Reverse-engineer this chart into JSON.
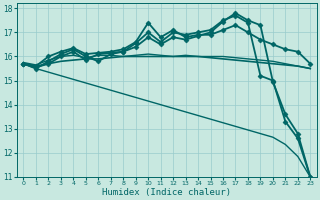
{
  "background_color": "#c8e8e0",
  "grid_color": "#99cccc",
  "line_color": "#006666",
  "xlabel": "Humidex (Indice chaleur)",
  "xlim": [
    -0.5,
    23.5
  ],
  "ylim": [
    11,
    18.2
  ],
  "yticks": [
    11,
    12,
    13,
    14,
    15,
    16,
    17,
    18
  ],
  "xticks": [
    0,
    1,
    2,
    3,
    4,
    5,
    6,
    7,
    8,
    9,
    10,
    11,
    12,
    13,
    14,
    15,
    16,
    17,
    18,
    19,
    20,
    21,
    22,
    23
  ],
  "series": [
    {
      "x": [
        0,
        1,
        2,
        3,
        4,
        5,
        6,
        7,
        8,
        9,
        10,
        11,
        12,
        13,
        14,
        15,
        16,
        17,
        18,
        19,
        20,
        21,
        22,
        23
      ],
      "y": [
        15.7,
        15.5,
        15.35,
        15.2,
        15.05,
        14.9,
        14.75,
        14.6,
        14.45,
        14.3,
        14.15,
        14.0,
        13.85,
        13.7,
        13.55,
        13.4,
        13.25,
        13.1,
        12.95,
        12.8,
        12.65,
        12.35,
        11.85,
        11.0
      ],
      "marker": null,
      "linewidth": 1.0
    },
    {
      "x": [
        0,
        1,
        2,
        3,
        4,
        5,
        6,
        7,
        8,
        9,
        10,
        11,
        12,
        13,
        14,
        15,
        16,
        17,
        18,
        19,
        20,
        21,
        22,
        23
      ],
      "y": [
        15.7,
        15.6,
        15.7,
        15.8,
        15.85,
        15.9,
        15.9,
        15.95,
        16.0,
        16.0,
        16.0,
        16.0,
        16.0,
        16.0,
        16.0,
        15.95,
        15.9,
        15.85,
        15.8,
        15.75,
        15.7,
        15.65,
        15.6,
        15.5
      ],
      "marker": null,
      "linewidth": 1.2
    },
    {
      "x": [
        0,
        1,
        2,
        3,
        4,
        5,
        6,
        7,
        8,
        9,
        10,
        11,
        12,
        13,
        14,
        15,
        16,
        17,
        18,
        19,
        20,
        21,
        22,
        23
      ],
      "y": [
        15.75,
        15.65,
        15.85,
        16.0,
        16.05,
        15.95,
        16.05,
        16.05,
        16.0,
        16.05,
        16.1,
        16.05,
        16.0,
        16.05,
        16.0,
        16.0,
        16.0,
        15.95,
        15.9,
        15.85,
        15.8,
        15.7,
        15.6,
        15.5
      ],
      "marker": null,
      "linewidth": 1.0
    },
    {
      "x": [
        0,
        1,
        2,
        3,
        4,
        5,
        6,
        7,
        8,
        9,
        10,
        11,
        12,
        13,
        14,
        15,
        16,
        17,
        18,
        19,
        20,
        21,
        22,
        23
      ],
      "y": [
        15.7,
        15.55,
        15.7,
        16.0,
        16.2,
        15.85,
        16.1,
        16.15,
        16.2,
        16.4,
        16.8,
        16.5,
        16.8,
        16.7,
        16.85,
        17.0,
        17.45,
        17.8,
        17.5,
        17.3,
        14.95,
        13.6,
        12.8,
        11.0
      ],
      "marker": "D",
      "linewidth": 1.3,
      "markersize": 2.5
    },
    {
      "x": [
        0,
        1,
        2,
        3,
        4,
        5,
        6,
        7,
        8,
        9,
        10,
        11,
        12,
        13,
        14,
        15,
        16,
        17,
        18,
        19,
        20,
        21,
        22,
        23
      ],
      "y": [
        15.7,
        15.5,
        15.8,
        16.1,
        16.3,
        16.0,
        15.8,
        16.1,
        16.2,
        16.55,
        17.0,
        16.6,
        17.0,
        16.9,
        17.0,
        17.1,
        17.5,
        17.7,
        17.4,
        15.2,
        15.0,
        13.3,
        12.6,
        11.0
      ],
      "marker": "D",
      "linewidth": 1.3,
      "markersize": 2.5
    },
    {
      "x": [
        0,
        1,
        2,
        3,
        4,
        5,
        6,
        7,
        8,
        9,
        10,
        11,
        12,
        13,
        14,
        15,
        16,
        17,
        18,
        19,
        20,
        21,
        22,
        23
      ],
      "y": [
        15.7,
        15.6,
        16.0,
        16.2,
        16.35,
        16.1,
        16.15,
        16.2,
        16.3,
        16.6,
        17.4,
        16.8,
        17.1,
        16.8,
        16.9,
        16.9,
        17.1,
        17.3,
        17.0,
        16.7,
        16.5,
        16.3,
        16.2,
        15.7
      ],
      "marker": "D",
      "linewidth": 1.3,
      "markersize": 2.5
    }
  ]
}
